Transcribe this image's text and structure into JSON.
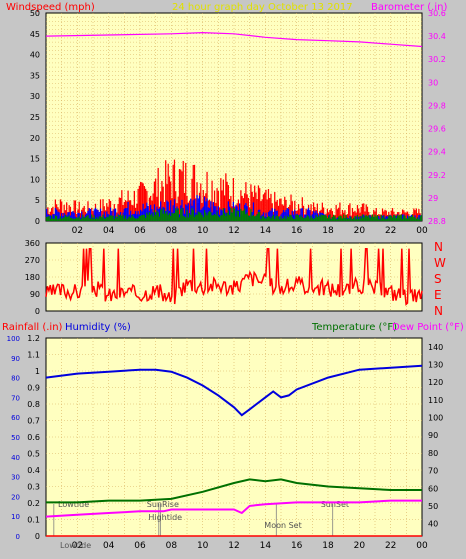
{
  "header": {
    "left_label": "Windspeed (mph)",
    "center_label": "24 hour graph day   October 13 2017",
    "right_label": "Barometer (.in)"
  },
  "colors": {
    "plot_bg": "#ffffc0",
    "frame_bg": "#c6c6c6",
    "grid": "#d8b060",
    "windspeed": "#ff0000",
    "gust": "#0000ff",
    "wind_avg": "#008000",
    "barometer": "#ff00ff",
    "rainfall": "#ff0000",
    "humidity": "#0000dd",
    "temperature": "#007000",
    "dewpoint": "#ff00ff",
    "date_label": "#e0e000",
    "events": "#808080"
  },
  "lower_header": {
    "rainfall_label": "Rainfall (.in)",
    "humidity_label": "Humidity (%)",
    "temperature_label": "Temperature (°F)",
    "dewpoint_label": "Dew Point (°F)"
  },
  "direction_labels": [
    "N",
    "W",
    "S",
    "E",
    "N"
  ],
  "events": [
    {
      "label": "Lowtide",
      "hour": 0.5,
      "row": "upper"
    },
    {
      "label": "SunRise",
      "hour": 7.2,
      "row": "upper"
    },
    {
      "label": "Hightide",
      "hour": 7.3,
      "row": "middle"
    },
    {
      "label": "Moon Set",
      "hour": 14.7,
      "row": "lower"
    },
    {
      "label": "SunSet",
      "hour": 18.3,
      "row": "upper"
    }
  ],
  "bottom_event_label": "Lowtide",
  "chart_data": [
    {
      "type": "bar",
      "name": "wind",
      "x_ticks": [
        "02",
        "04",
        "06",
        "08",
        "10",
        "12",
        "14",
        "16",
        "18",
        "20",
        "22",
        "00"
      ],
      "y_left_ticks": [
        0,
        5,
        10,
        15,
        20,
        25,
        30,
        35,
        40,
        45,
        50
      ],
      "y_left_range": [
        0,
        50
      ],
      "y_right_ticks": [
        28.8,
        29,
        29.2,
        29.4,
        29.6,
        29.8,
        30,
        30.2,
        30.4,
        30.6
      ],
      "y_right_range": [
        28.8,
        30.6
      ],
      "grid": true,
      "series": [
        {
          "name": "Windspeed (mph)",
          "values_by_hour": [
            3,
            4,
            3,
            3,
            4,
            5,
            6,
            8,
            10,
            10,
            9,
            8,
            7,
            6,
            5,
            4,
            4,
            3,
            3,
            3,
            3,
            2,
            2,
            2,
            2
          ]
        },
        {
          "name": "gust",
          "values_by_hour": [
            2,
            2,
            2,
            2,
            2,
            3,
            3,
            3,
            4,
            4,
            4,
            3,
            3,
            3,
            2,
            2,
            2,
            2,
            1,
            1,
            1,
            1,
            1,
            1,
            1
          ]
        },
        {
          "name": "average",
          "values_by_hour": [
            1,
            1,
            1,
            1,
            1,
            1,
            1,
            2,
            2,
            2,
            2,
            2,
            2,
            2,
            1,
            1,
            1,
            1,
            1,
            1,
            1,
            1,
            1,
            1,
            1
          ]
        },
        {
          "name": "Barometer (.in)",
          "axis": "right",
          "hours": [
            0,
            4,
            8,
            10,
            12,
            14,
            16,
            18,
            20,
            22,
            24
          ],
          "values": [
            30.4,
            30.41,
            30.42,
            30.43,
            30.42,
            30.39,
            30.37,
            30.36,
            30.35,
            30.33,
            30.31
          ]
        }
      ]
    },
    {
      "type": "line",
      "name": "wind_direction",
      "y_ticks": [
        0,
        90,
        180,
        270,
        360
      ],
      "y_range": [
        0,
        360
      ],
      "grid": true,
      "series": [
        {
          "name": "direction",
          "hours": [
            0,
            1,
            2,
            3,
            4,
            5,
            6,
            7,
            8,
            9,
            10,
            11,
            12,
            13,
            14,
            15,
            16,
            17,
            18,
            19,
            20,
            21,
            22,
            23,
            24
          ],
          "values": [
            90,
            110,
            100,
            130,
            80,
            100,
            90,
            110,
            60,
            150,
            130,
            140,
            120,
            180,
            150,
            120,
            140,
            130,
            120,
            110,
            140,
            120,
            100,
            80,
            70
          ]
        }
      ]
    },
    {
      "type": "line",
      "name": "humidity_temperature",
      "x_ticks": [
        "02",
        "04",
        "06",
        "08",
        "10",
        "12",
        "14",
        "16",
        "18",
        "20",
        "22",
        "00"
      ],
      "y_rain_ticks": [
        0,
        0.1,
        0.2,
        0.3,
        0.4,
        0.5,
        0.6,
        0.7,
        0.8,
        0.9,
        1,
        1.1,
        1.2
      ],
      "y_rain_range": [
        0,
        1.2
      ],
      "y_humidity_ticks": [
        0,
        10,
        20,
        30,
        40,
        50,
        60,
        70,
        80,
        90,
        100
      ],
      "y_humidity_range": [
        0,
        100
      ],
      "y_temp_ticks": [
        40,
        50,
        60,
        70,
        80,
        90,
        100,
        110,
        120,
        130,
        140
      ],
      "y_temp_range": [
        33,
        145
      ],
      "grid": true,
      "series": [
        {
          "name": "Humidity (%)",
          "hours": [
            0,
            2,
            4,
            6,
            7,
            8,
            9,
            10,
            11,
            12,
            12.5,
            13,
            14,
            14.5,
            15,
            15.5,
            16,
            18,
            20,
            22,
            24
          ],
          "values": [
            80,
            82,
            83,
            84,
            84,
            83,
            80,
            76,
            71,
            65,
            61,
            64,
            70,
            73,
            70,
            71,
            74,
            80,
            84,
            85,
            86
          ]
        },
        {
          "name": "Temperature (°F)",
          "hours": [
            0,
            2,
            4,
            6,
            8,
            10,
            12,
            13,
            14,
            15,
            16,
            18,
            20,
            22,
            24
          ],
          "values": [
            52,
            52,
            53,
            53,
            54,
            58,
            63,
            65,
            64,
            65,
            63,
            61,
            60,
            59,
            59
          ]
        },
        {
          "name": "Dew Point (°F)",
          "hours": [
            0,
            2,
            4,
            6,
            7.5,
            8,
            10,
            12,
            12.5,
            13,
            14,
            16,
            18,
            20,
            22,
            24
          ],
          "values": [
            44,
            45,
            46,
            47,
            47,
            48,
            48,
            48,
            46,
            50,
            51,
            52,
            52,
            52,
            53,
            53
          ]
        },
        {
          "name": "Rainfall (.in)",
          "hours": [
            0,
            24
          ],
          "values": [
            0,
            0
          ]
        }
      ]
    }
  ]
}
